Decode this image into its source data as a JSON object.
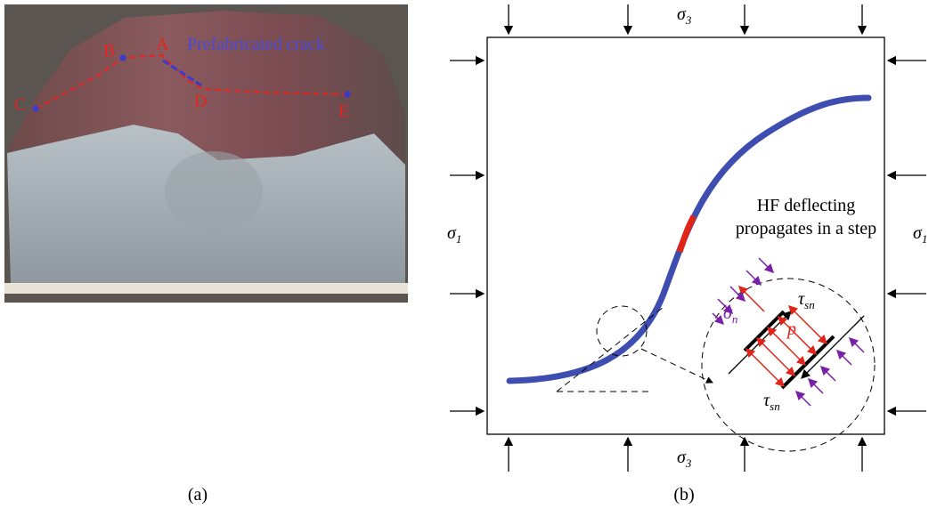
{
  "panel_a": {
    "caption": "(a)",
    "crack_label": "Prefabricated crack",
    "points": {
      "A": "A",
      "B": "B",
      "C": "C",
      "D": "D",
      "E": "E"
    }
  },
  "panel_b": {
    "caption": "(b)",
    "sigma3_top": {
      "symbol": "σ",
      "sub": "3"
    },
    "sigma3_bottom": {
      "symbol": "σ",
      "sub": "3"
    },
    "sigma1_left": {
      "symbol": "σ",
      "sub": "1"
    },
    "sigma1_right": {
      "symbol": "σ",
      "sub": "1"
    },
    "note": [
      "HF deflecting",
      "propagates in a step"
    ],
    "sigma_n": {
      "symbol": "σ",
      "sub": "n"
    },
    "tau_top": {
      "symbol": "τ",
      "sub": "sn"
    },
    "tau_bottom": {
      "symbol": "τ",
      "sub": "sn"
    },
    "pressure": "p"
  }
}
